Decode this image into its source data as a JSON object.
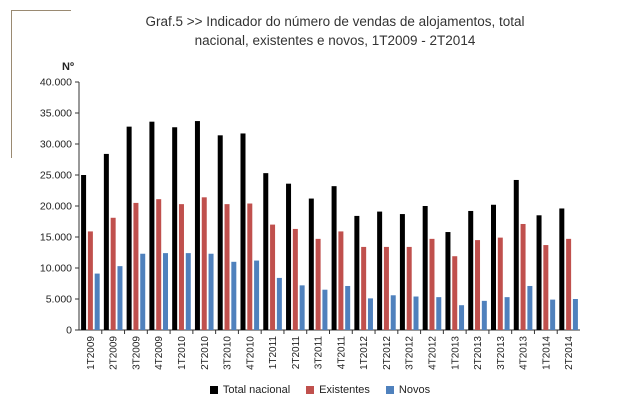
{
  "title": {
    "line1": "Graf.5   >>  Indicador do número de vendas de alojamentos, total",
    "line2": "nacional, existentes e novos, 1T2009 - 2T2014"
  },
  "unit_label": "Nº",
  "colors": {
    "Total nacional": "#000000",
    "Existentes": "#c0504d",
    "Novos": "#4f81bd",
    "axis": "#333333",
    "corner_line": "#9a8a72"
  },
  "chart_data": {
    "type": "bar",
    "title": "Graf.5 >> Indicador do número de vendas de alojamentos, total nacional, existentes e novos, 1T2009 - 2T2014",
    "ylabel": "Nº",
    "xlabel": "",
    "ylim": [
      0,
      40000
    ],
    "yticks": [
      "0",
      "5.000",
      "10.000",
      "15.000",
      "20.000",
      "25.000",
      "30.000",
      "35.000",
      "40.000"
    ],
    "ytick_values": [
      0,
      5000,
      10000,
      15000,
      20000,
      25000,
      30000,
      35000,
      40000
    ],
    "grid": false,
    "legend": "bottom",
    "categories": [
      "1T2009",
      "2T2009",
      "3T2009",
      "4T2009",
      "1T2010",
      "2T2010",
      "3T2010",
      "4T2010",
      "1T2011",
      "2T2011",
      "3T2011",
      "4T2011",
      "1T2012",
      "2T2012",
      "3T2012",
      "4T2012",
      "1T2013",
      "2T2013",
      "3T2013",
      "4T2013",
      "1T2014",
      "2T2014"
    ],
    "series": [
      {
        "name": "Total nacional",
        "values": [
          25000,
          28400,
          32800,
          33600,
          32700,
          33700,
          31400,
          31700,
          25300,
          23600,
          21200,
          23200,
          18400,
          19100,
          18700,
          20000,
          15800,
          19200,
          20200,
          24200,
          18500,
          19600
        ]
      },
      {
        "name": "Existentes",
        "values": [
          15900,
          18100,
          20500,
          21100,
          20300,
          21400,
          20300,
          20400,
          17000,
          16300,
          14700,
          15900,
          13400,
          13400,
          13400,
          14700,
          11900,
          14500,
          14900,
          17100,
          13700,
          14700
        ]
      },
      {
        "name": "Novos",
        "values": [
          9100,
          10300,
          12300,
          12400,
          12400,
          12300,
          11000,
          11200,
          8400,
          7200,
          6500,
          7100,
          5100,
          5600,
          5400,
          5300,
          4000,
          4700,
          5300,
          7100,
          4900,
          5000
        ]
      }
    ]
  }
}
